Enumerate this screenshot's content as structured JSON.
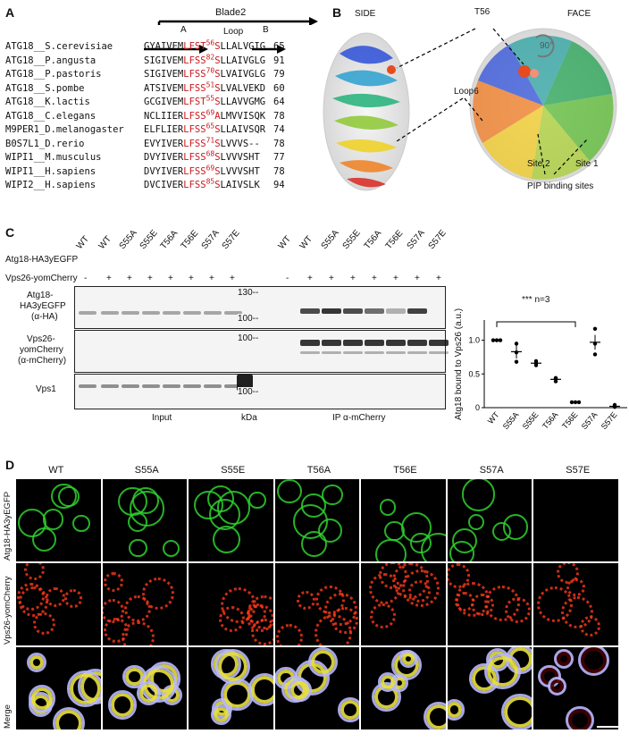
{
  "panels": {
    "a": "A",
    "b": "B",
    "c": "C",
    "d": "D"
  },
  "panelA": {
    "blade": "Blade2",
    "strandA": "A",
    "loop": "Loop",
    "strandB": "B",
    "rows": [
      {
        "name": "ATG18__S.cerevisiae",
        "pre": "GYAIVEM",
        "red1": "LFST",
        "num": "56",
        "red2": "S",
        "post": "LLALVGIG",
        "len": "65"
      },
      {
        "name": "ATG18__P.angusta",
        "pre": "SIGIVEM",
        "red1": "LFSS",
        "num": "82",
        "red2": "S",
        "post": "LLAIVGLG",
        "len": "91"
      },
      {
        "name": "ATG18__P.pastoris",
        "pre": "SIGIVEM",
        "red1": "LFSS",
        "num": "70",
        "red2": "S",
        "post": "LVAIVGLG",
        "len": "79"
      },
      {
        "name": "ATG18__S.pombe",
        "pre": "ATSIVEM",
        "red1": "LFSS",
        "num": "51",
        "red2": "S",
        "post": "LVALVEKD",
        "len": "60"
      },
      {
        "name": "ATG18__K.lactis",
        "pre": "GCGIVEM",
        "red1": "LFST",
        "num": "55",
        "red2": "S",
        "post": "LLAVVGMG",
        "len": "64"
      },
      {
        "name": "ATG18__C.elegans",
        "pre": "NCLIIER",
        "red1": "LFSS",
        "num": "69",
        "red2": "A",
        "post": "LMVVISQK",
        "len": "78"
      },
      {
        "name": "M9PER1_D.melanogaster",
        "pre": "ELFLIER",
        "red1": "LFSS",
        "num": "65",
        "red2": "S",
        "post": "LLAIVSQR",
        "len": "74"
      },
      {
        "name": "B0S7L1_D.rerio",
        "pre": "EVYIVER",
        "red1": "LFSS",
        "num": "71",
        "red2": "S",
        "post": "LVVVS--",
        "len": "78"
      },
      {
        "name": "WIPI1__M.musculus",
        "pre": "DVYIVER",
        "red1": "LFSS",
        "num": "68",
        "red2": "S",
        "post": "LVVVSHT",
        "len": "77"
      },
      {
        "name": "WIPI1__H.sapiens",
        "pre": "DVYIVER",
        "red1": "LFSS",
        "num": "69",
        "red2": "S",
        "post": "LVVVSHT",
        "len": "78"
      },
      {
        "name": "WIPI2__H.sapiens",
        "pre": "DVCIVER",
        "red1": "LFSS",
        "num": "85",
        "red2": "S",
        "post": "LAIVSLK",
        "len": "94"
      }
    ]
  },
  "panelB": {
    "side": "SIDE",
    "face": "FACE",
    "t56": "T56",
    "loop6": "Loop6",
    "rot": "90°",
    "site2": "Site 2",
    "site1": "Site 1",
    "pip": "PIP binding sites"
  },
  "panelC": {
    "row1_label": "Atg18-HA3yEGFP",
    "row2_label": "Vps26-yomCherry",
    "lanes": [
      "WT",
      "WT",
      "S55A",
      "S55E",
      "T56A",
      "T56E",
      "S57A",
      "S57E"
    ],
    "signs": [
      "-",
      "+",
      "+",
      "+",
      "+",
      "+",
      "+",
      "+"
    ],
    "blot1": "Atg18-\nHA3yEGFP\n(α-HA)",
    "blot1_l1": "Atg18-",
    "blot1_l2": "HA3yEGFP",
    "blot1_l3": "(α-HA)",
    "blot2_l1": "Vps26-",
    "blot2_l2": "yomCherry",
    "blot2_l3": "(α-mCherry)",
    "blot3": "Vps1",
    "mw130": "130--",
    "mw100a": "100--",
    "mw100b": "100--",
    "mw100c": "100--",
    "input": "Input",
    "kda": "kDa",
    "ip": "IP α-mCherry",
    "plot_sig": "*** n=3",
    "plot_ylabel": "Atg18 bound to Vps26 (a.u.)"
  },
  "chart_data": {
    "type": "scatter",
    "categories": [
      "WT",
      "S55A",
      "S55E",
      "T56A",
      "T56E",
      "S57A",
      "S57E"
    ],
    "mean": [
      1.0,
      0.83,
      0.66,
      0.42,
      0.08,
      0.97,
      0.02
    ],
    "points": [
      [
        1.0,
        1.0,
        1.0
      ],
      [
        0.95,
        0.68,
        0.82
      ],
      [
        0.69,
        0.63,
        0.66
      ],
      [
        0.44,
        0.39,
        0.43
      ],
      [
        0.08,
        0.08,
        0.08
      ],
      [
        1.17,
        0.79,
        0.95
      ],
      [
        0.04,
        0.01,
        0.02
      ]
    ],
    "sem": [
      0,
      0.1,
      0.02,
      0.02,
      0.005,
      0.11,
      0.01
    ],
    "ylabel": "Atg18 bound to Vps26 (a.u.)",
    "yticks": [
      "0",
      "0.5",
      "1.0"
    ],
    "ylim": [
      0,
      1.3
    ],
    "annotation": "*** n=3"
  },
  "panelD": {
    "cols": [
      "WT",
      "S55A",
      "S55E",
      "T56A",
      "T56E",
      "S57A",
      "S57E"
    ],
    "rows": [
      "Atg18-HA3yEGFP",
      "Vps26-yomCherry",
      "Merge"
    ],
    "colors": {
      "green": "#2fd12f",
      "red": "#ff3a1a",
      "blue": "#b8b8ff",
      "yellow": "#e8e040"
    }
  }
}
